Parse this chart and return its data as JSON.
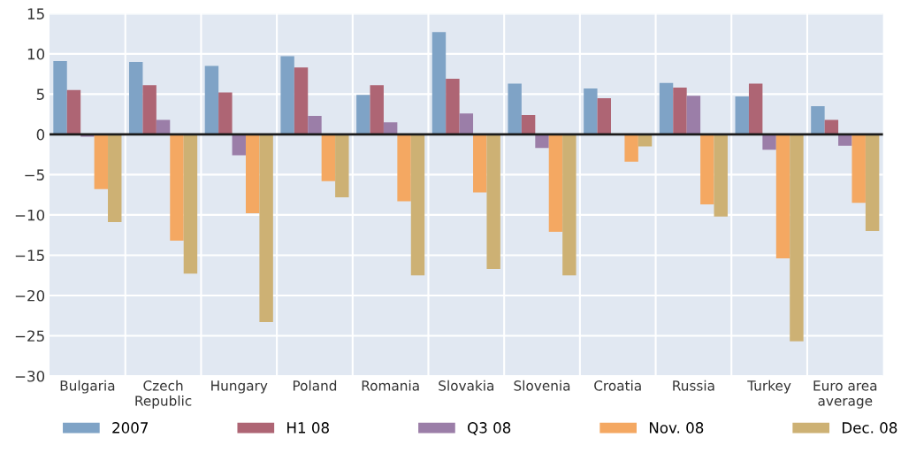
{
  "chart_data": {
    "type": "bar",
    "categories": [
      "Bulgaria",
      "Czech\nRepublic",
      "Hungary",
      "Poland",
      "Romania",
      "Slovakia",
      "Slovenia",
      "Croatia",
      "Russia",
      "Turkey",
      "Euro area\naverage"
    ],
    "series": [
      {
        "name": "2007",
        "color": "#7fa3c6",
        "values": [
          9.1,
          9.0,
          8.5,
          9.7,
          4.9,
          12.7,
          6.3,
          5.7,
          6.4,
          4.7,
          3.5
        ]
      },
      {
        "name": "H1 08",
        "color": "#ae6574",
        "values": [
          5.5,
          6.1,
          5.2,
          8.3,
          6.1,
          6.9,
          2.4,
          4.5,
          5.8,
          6.3,
          1.8
        ]
      },
      {
        "name": "Q3 08",
        "color": "#9b7ea8",
        "values": [
          -0.3,
          1.8,
          -2.6,
          2.3,
          1.5,
          2.6,
          -1.7,
          null,
          4.8,
          -1.9,
          -1.4
        ]
      },
      {
        "name": "Nov. 08",
        "color": "#f4a862",
        "values": [
          -6.8,
          -13.2,
          -9.8,
          -5.8,
          -8.3,
          -7.2,
          -12.1,
          -3.4,
          -8.7,
          -15.4,
          -8.5
        ]
      },
      {
        "name": "Dec. 08",
        "color": "#cdb174",
        "values": [
          -10.9,
          -17.3,
          -23.3,
          -7.8,
          -17.5,
          -16.7,
          -17.5,
          -1.5,
          -10.2,
          -25.7,
          -12.0
        ]
      }
    ],
    "ylim": [
      -30,
      15
    ],
    "yticks": [
      {
        "value": -30,
        "label": "−30"
      },
      {
        "value": -25,
        "label": "−25"
      },
      {
        "value": -20,
        "label": "−20"
      },
      {
        "value": -15,
        "label": "−15"
      },
      {
        "value": -10,
        "label": "−10"
      },
      {
        "value": -5,
        "label": "−5"
      },
      0,
      5,
      10,
      15
    ],
    "ref_lines": [
      {
        "axis": "y",
        "value": 0,
        "color": "#1a1a1a"
      }
    ],
    "grid": true,
    "legend": "bottom"
  }
}
